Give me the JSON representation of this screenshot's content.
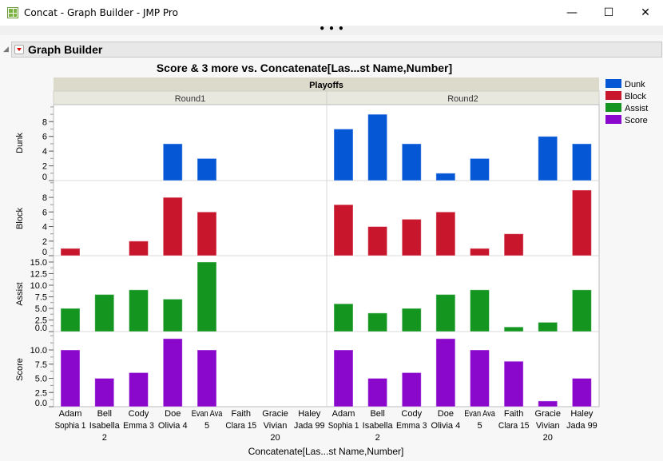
{
  "window": {
    "title": "Concat - Graph Builder - JMP Pro",
    "minimize": "—",
    "maximize": "☐",
    "close": "✕",
    "more": "• • •"
  },
  "report": {
    "title": "Graph Builder"
  },
  "chart_data": {
    "type": "bar",
    "title": "Score & 3 more vs. Concatenate[Las...st Name,Number]",
    "xlabel": "Concatenate[Las...st Name,Number]",
    "group_header": "Playoffs",
    "groups": [
      "Round1",
      "Round2"
    ],
    "categories": [
      [
        "Adam",
        "Sophia 1"
      ],
      [
        "Bell",
        "Isabella",
        "2"
      ],
      [
        "Cody",
        "Emma 3"
      ],
      [
        "Doe",
        "Olivia 4"
      ],
      [
        "Evan Ava",
        "5"
      ],
      [
        "Faith",
        "Clara 15"
      ],
      [
        "Gracie",
        "Vivian",
        "20"
      ],
      [
        "Haley",
        "Jada 99"
      ]
    ],
    "series": [
      {
        "name": "Dunk",
        "color": "#0657d6",
        "ylim": [
          0,
          10.2
        ],
        "ticks": [
          0,
          2,
          4,
          6,
          8
        ],
        "minor": 1,
        "values": {
          "Round1": [
            null,
            null,
            null,
            5,
            3,
            null,
            null,
            null
          ],
          "Round2": [
            7,
            9,
            5,
            1,
            3,
            null,
            6,
            5
          ]
        }
      },
      {
        "name": "Block",
        "color": "#c8162d",
        "ylim": [
          0,
          10.2
        ],
        "ticks": [
          0,
          2,
          4,
          6,
          8
        ],
        "minor": 1,
        "values": {
          "Round1": [
            1,
            null,
            2,
            8,
            6,
            null,
            null,
            null
          ],
          "Round2": [
            7,
            4,
            5,
            6,
            1,
            3,
            null,
            9
          ]
        }
      },
      {
        "name": "Assist",
        "color": "#13951f",
        "ylim": [
          0,
          16.2
        ],
        "ticks": [
          "0.0",
          "2.5",
          "5.0",
          "7.5",
          "10.0",
          "12.5",
          "15.0"
        ],
        "minor": 1.25,
        "values": {
          "Round1": [
            5,
            8,
            9,
            7,
            15,
            null,
            null,
            null
          ],
          "Round2": [
            6,
            4,
            5,
            8,
            9,
            1,
            2,
            9
          ]
        }
      },
      {
        "name": "Score",
        "color": "#8a08cc",
        "ylim": [
          0,
          13.1
        ],
        "ticks": [
          "0.0",
          "2.5",
          "5.0",
          "7.5",
          "10.0"
        ],
        "minor": 1.25,
        "values": {
          "Round1": [
            10,
            5,
            6,
            12,
            10,
            null,
            null,
            null
          ],
          "Round2": [
            10,
            5,
            6,
            12,
            10,
            8,
            1,
            5
          ]
        }
      }
    ],
    "legend": "right",
    "grid": false
  }
}
